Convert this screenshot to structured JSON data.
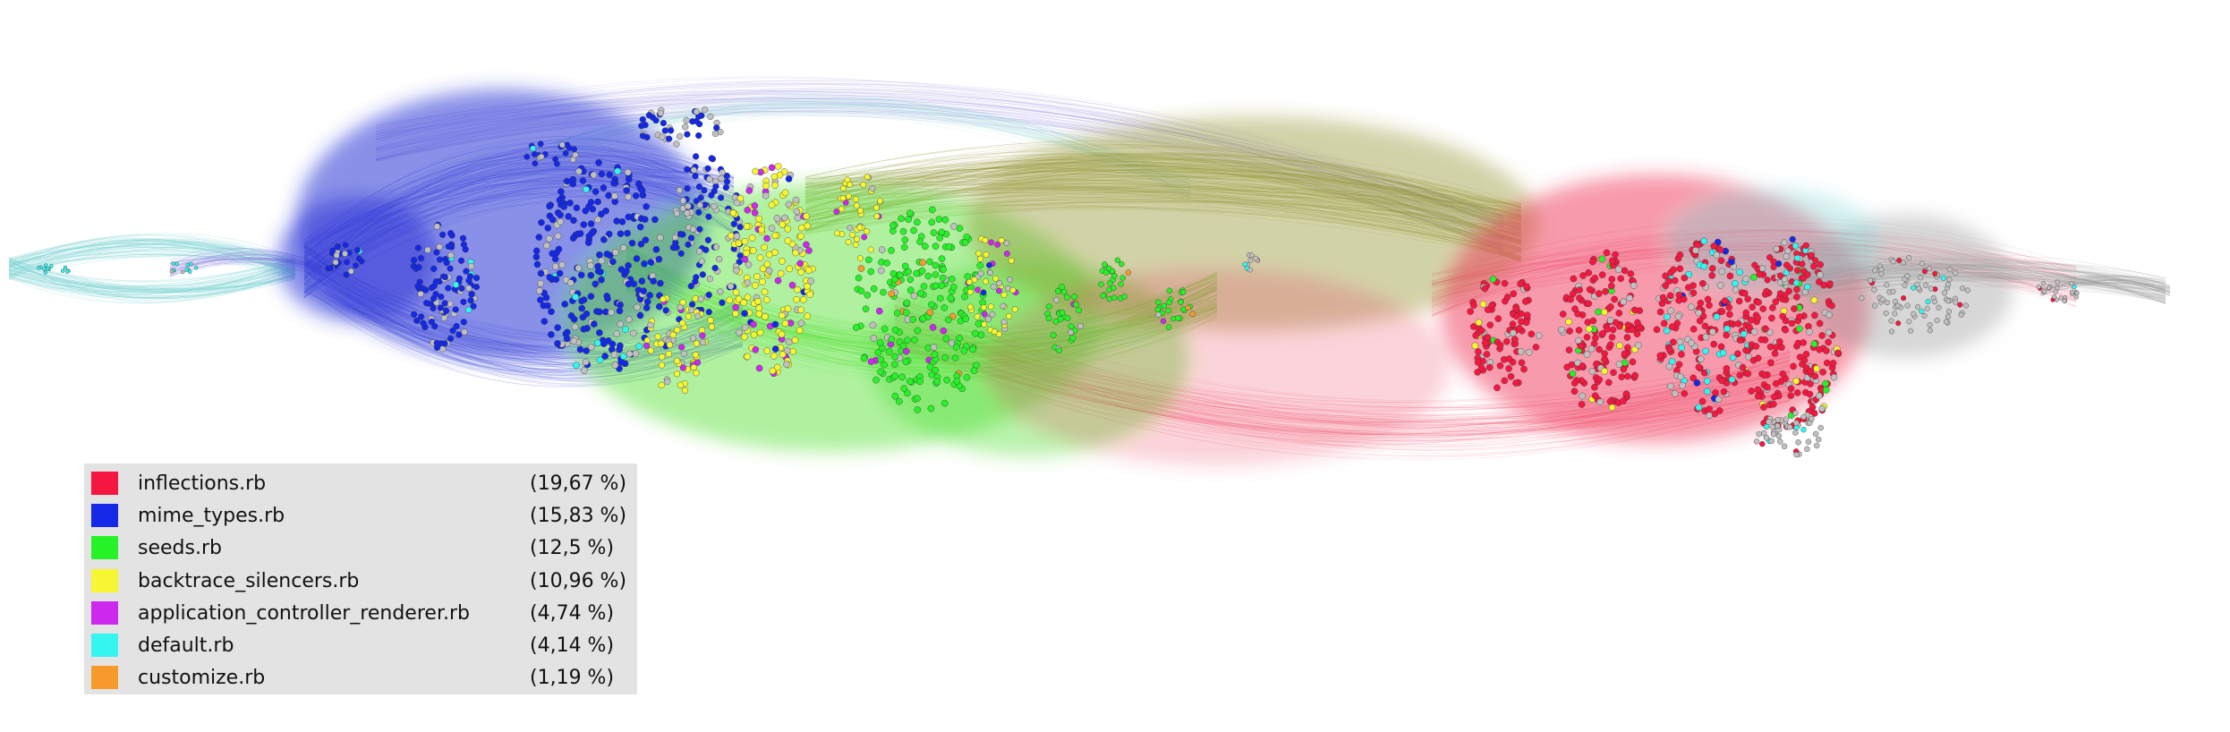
{
  "legend": {
    "items": [
      {
        "name": "inflections.rb",
        "percent": "(19,67 %)",
        "color": "#f5173f"
      },
      {
        "name": "mime_types.rb",
        "percent": "(15,83 %)",
        "color": "#1428e8"
      },
      {
        "name": "seeds.rb",
        "percent": "(12,5 %)",
        "color": "#27f227"
      },
      {
        "name": "backtrace_silencers.rb",
        "percent": "(10,96 %)",
        "color": "#f6f632"
      },
      {
        "name": "application_controller_renderer.rb",
        "percent": "(4,74 %)",
        "color": "#cc28ee"
      },
      {
        "name": "default.rb",
        "percent": "(4,14 %)",
        "color": "#35f5f0"
      },
      {
        "name": "customize.rb",
        "percent": "(1,19 %)",
        "color": "#f79a2c"
      }
    ]
  },
  "graph": {
    "edge_colors": {
      "blue": "#2a35d6",
      "green": "#4fe02f",
      "olive": "#8f8f2a",
      "red": "#ee2f52",
      "cyan": "#7fd5d5",
      "gray": "#9a9a9a",
      "lavender": "#8f86e0"
    },
    "node_colors": {
      "inflections": "#f5173f",
      "mime_types": "#1428e8",
      "seeds": "#27f227",
      "backtrace": "#f6f632",
      "app_controller": "#cc28ee",
      "default": "#35f5f0",
      "customize": "#f79a2c",
      "other": "#c0c0c0"
    }
  }
}
